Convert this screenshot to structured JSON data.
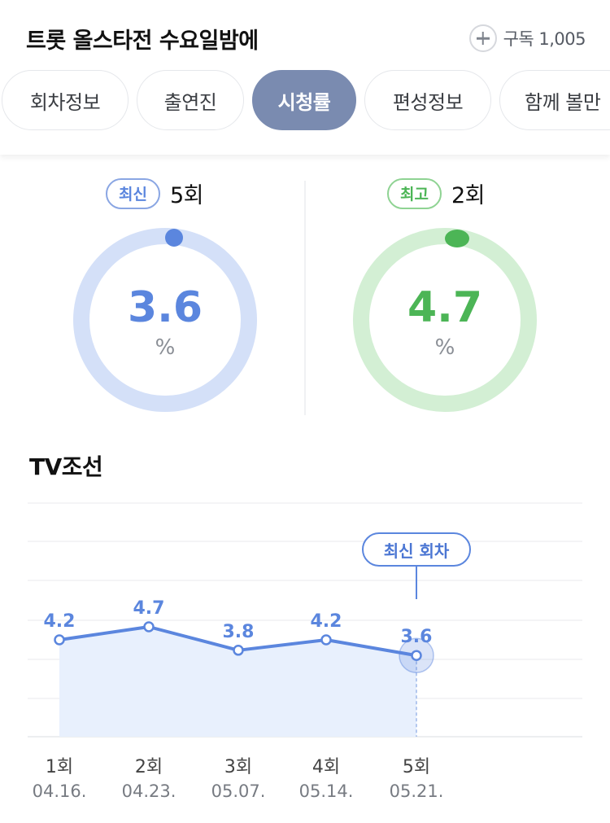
{
  "header": {
    "title": "트롯 올스타전 수요일밤에",
    "subscribe_label": "구독 1,005",
    "tabs": [
      {
        "label": "회차정보",
        "active": false
      },
      {
        "label": "출연진",
        "active": false
      },
      {
        "label": "시청률",
        "active": true
      },
      {
        "label": "편성정보",
        "active": false
      },
      {
        "label": "함께 볼만",
        "active": false
      }
    ]
  },
  "latest": {
    "badge": "최신",
    "episode": "5회",
    "value": "3.6",
    "unit": "%",
    "color": "#5b86de",
    "track_color": "#d4e0f8"
  },
  "best": {
    "badge": "최고",
    "episode": "2회",
    "value": "4.7",
    "unit": "%",
    "color": "#4cb556",
    "track_color": "#d3efd4"
  },
  "chart_title": "TV조선",
  "tooltip": "최신 회차",
  "chart_data": {
    "type": "area",
    "categories": [
      "1회",
      "2회",
      "3회",
      "4회",
      "5회"
    ],
    "dates": [
      "04.16.",
      "04.23.",
      "05.07.",
      "05.14.",
      "05.21."
    ],
    "values": [
      4.2,
      4.7,
      3.8,
      4.2,
      3.6
    ],
    "value_labels": [
      "4.2",
      "4.7",
      "3.8",
      "4.2",
      "3.6"
    ],
    "line_color": "#5b86de",
    "fill_color": "#e8f0fd",
    "highlight_index": 4,
    "grid": true
  }
}
